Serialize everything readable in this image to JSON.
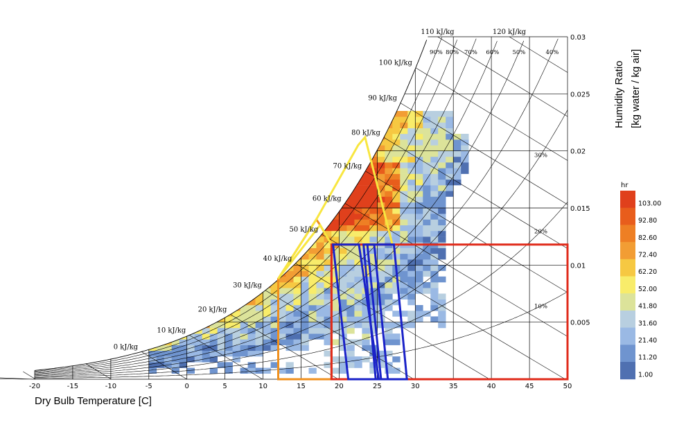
{
  "chart_data": {
    "type": "heatmap",
    "title": "",
    "xlabel": "Dry Bulb Temperature [C]",
    "ylabel_lines": [
      "Humidity Ratio",
      "[kg water / kg air]"
    ],
    "xlim": [
      -20,
      50
    ],
    "ylim": [
      0,
      0.03
    ],
    "x_ticks": [
      "-20",
      "-15",
      "-10",
      "-5",
      "0",
      "5",
      "10",
      "15",
      "20",
      "25",
      "30",
      "35",
      "40",
      "45",
      "50"
    ],
    "y_ticks": [
      "0.005",
      "0.01",
      "0.015",
      "0.02",
      "0.025",
      "0.03"
    ],
    "grid": true,
    "enthalpy_lines": [
      {
        "value": 0,
        "label": "0 kJ/kg"
      },
      {
        "value": 10,
        "label": "10 kJ/kg"
      },
      {
        "value": 20,
        "label": "20 kJ/kg"
      },
      {
        "value": 30,
        "label": "30 kJ/kg"
      },
      {
        "value": 40,
        "label": "40 kJ/kg"
      },
      {
        "value": 50,
        "label": "50 kJ/kg"
      },
      {
        "value": 60,
        "label": "60 kJ/kg"
      },
      {
        "value": 70,
        "label": "70 kJ/kg"
      },
      {
        "value": 80,
        "label": "80 kJ/kg"
      },
      {
        "value": 90,
        "label": "90 kJ/kg"
      },
      {
        "value": 100,
        "label": "100 kJ/kg"
      },
      {
        "value": 110,
        "label": "110 kJ/kg"
      },
      {
        "value": 120,
        "label": "120 kJ/kg"
      }
    ],
    "rh_curves": [
      {
        "value": 10,
        "label": "10%"
      },
      {
        "value": 20,
        "label": "20%"
      },
      {
        "value": 30,
        "label": "30%"
      },
      {
        "value": 40,
        "label": "40%"
      },
      {
        "value": 50,
        "label": "50%"
      },
      {
        "value": 60,
        "label": "60%"
      },
      {
        "value": 70,
        "label": "70%"
      },
      {
        "value": 80,
        "label": "80%"
      },
      {
        "value": 90,
        "label": "90%"
      }
    ],
    "legend": {
      "title": "hr",
      "placement": "right",
      "labels": [
        "103.00",
        "92.80",
        "82.60",
        "72.40",
        "62.20",
        "52.00",
        "41.80",
        "31.60",
        "21.40",
        "11.20",
        "1.00"
      ],
      "colors": [
        "#e0401c",
        "#e85d1c",
        "#ee7f24",
        "#f29d34",
        "#f6c842",
        "#f8ec6a",
        "#dce39a",
        "#b8cfe0",
        "#9ab9e4",
        "#6f94cf",
        "#4f70b1"
      ]
    },
    "comfort_zones": [
      {
        "name": "orange",
        "color": "#f0901e",
        "polygon": [
          [
            12,
            0
          ],
          [
            19,
            0
          ],
          [
            19,
            0.0118
          ],
          [
            17.5,
            0.0135
          ],
          [
            17,
            0.014
          ],
          [
            12,
            0.0088
          ]
        ]
      },
      {
        "name": "yellow",
        "color": "#f8e640",
        "polygon": [
          [
            12,
            0.0088
          ],
          [
            17,
            0.014
          ],
          [
            22.5,
            0.0205
          ],
          [
            23.4,
            0.0212
          ],
          [
            27,
            0.0118
          ],
          [
            19,
            0.0118
          ],
          [
            17.5,
            0.0135
          ]
        ]
      },
      {
        "name": "red",
        "color": "#e02a1a",
        "polygon": [
          [
            19,
            0
          ],
          [
            50,
            0
          ],
          [
            50,
            0.0118
          ],
          [
            19,
            0.0118
          ]
        ]
      },
      {
        "name": "blue-1",
        "color": "#1a22c8",
        "polygon": [
          [
            21.2,
            0
          ],
          [
            25.2,
            0
          ],
          [
            22.6,
            0.0118
          ],
          [
            19.2,
            0.0118
          ]
        ]
      },
      {
        "name": "blue-2",
        "color": "#1a22c8",
        "polygon": [
          [
            24.8,
            0
          ],
          [
            26.4,
            0
          ],
          [
            24.6,
            0.0118
          ],
          [
            23.2,
            0.0118
          ]
        ]
      },
      {
        "name": "blue-3",
        "color": "#1a22c8",
        "polygon": [
          [
            25.5,
            0
          ],
          [
            28.9,
            0
          ],
          [
            27.2,
            0.0118
          ],
          [
            23.7,
            0.0118
          ]
        ]
      }
    ]
  }
}
